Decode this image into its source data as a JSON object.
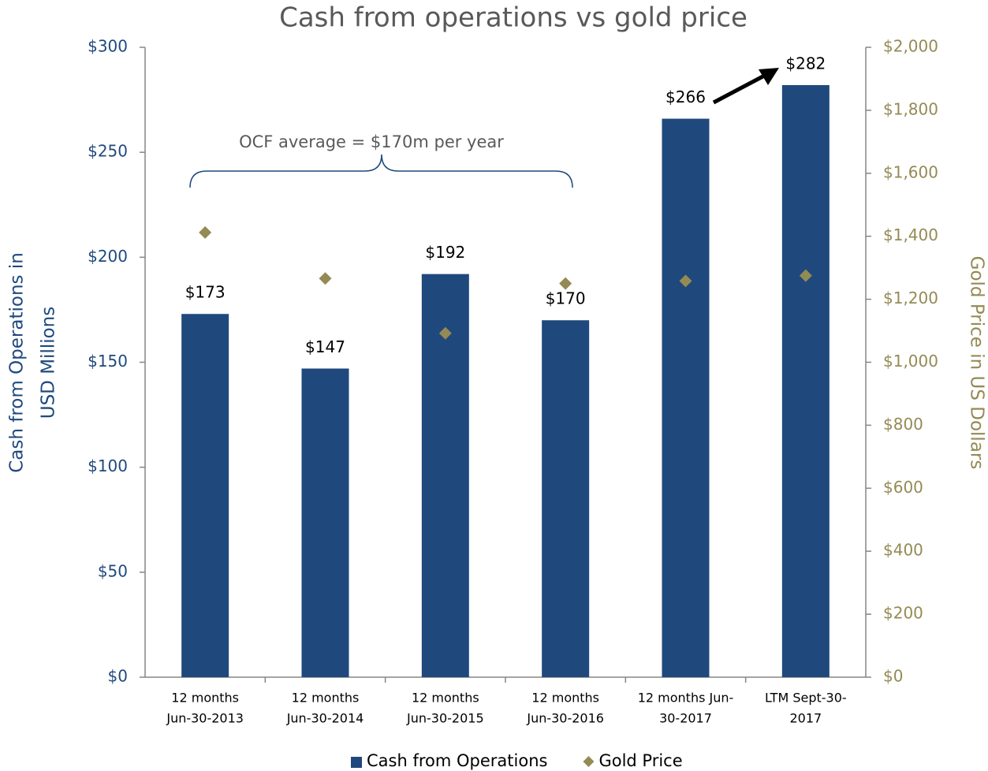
{
  "chart_data": {
    "type": "bar",
    "title": "Cash from operations vs gold price",
    "y_label": [
      "Cash from Operations in",
      "USD Millions"
    ],
    "y2_label": "Gold Price in US Dollars",
    "annotation": "OCF average = $170m per year",
    "categories": [
      [
        "12 months",
        "Jun-30-2013"
      ],
      [
        "12 months",
        "Jun-30-2014"
      ],
      [
        "12 months",
        "Jun-30-2015"
      ],
      [
        "12 months",
        "Jun-30-2016"
      ],
      [
        "12 months Jun-",
        "30-2017"
      ],
      [
        "LTM Sept-30-",
        "2017"
      ]
    ],
    "series": [
      {
        "name": "Cash from Operations",
        "type": "bar",
        "color": "#1f497d",
        "axis": "y",
        "values": [
          173,
          147,
          192,
          170,
          266,
          282
        ],
        "value_labels": [
          "$173",
          "$147",
          "$192",
          "$170",
          "$266",
          "$282"
        ]
      },
      {
        "name": "Gold Price",
        "type": "scatter",
        "color": "#948a54",
        "axis": "y2",
        "values": [
          1412,
          1266,
          1092,
          1250,
          1258,
          1275
        ]
      }
    ],
    "ylim": [
      0,
      300
    ],
    "yticks": [
      {
        "value": 0,
        "label": "$0"
      },
      {
        "value": 50,
        "label": "$50"
      },
      {
        "value": 100,
        "label": "$100"
      },
      {
        "value": 150,
        "label": "$150"
      },
      {
        "value": 200,
        "label": "$200"
      },
      {
        "value": 250,
        "label": "$250"
      },
      {
        "value": 300,
        "label": "$300"
      }
    ],
    "y2lim": [
      0,
      2000
    ],
    "y2ticks": [
      {
        "value": 0,
        "label": "$0"
      },
      {
        "value": 200,
        "label": "$200"
      },
      {
        "value": 400,
        "label": "$400"
      },
      {
        "value": 600,
        "label": "$600"
      },
      {
        "value": 800,
        "label": "$800"
      },
      {
        "value": 1000,
        "label": "$1,000"
      },
      {
        "value": 1200,
        "label": "$1,200"
      },
      {
        "value": 1400,
        "label": "$1,400"
      },
      {
        "value": 1600,
        "label": "$1,600"
      },
      {
        "value": 1800,
        "label": "$1,800"
      },
      {
        "value": 2000,
        "label": "$2,000"
      }
    ],
    "legend": "bottom"
  }
}
